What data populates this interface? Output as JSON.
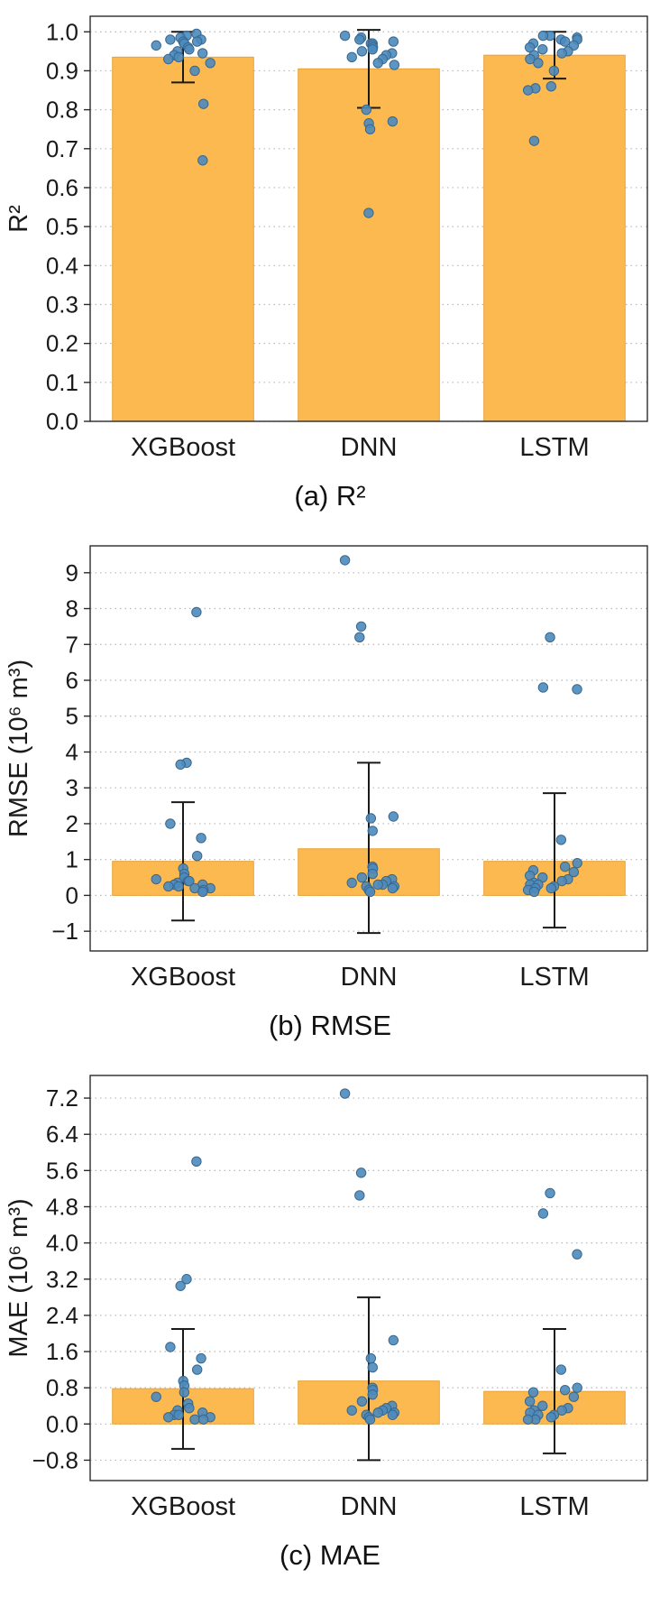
{
  "figure": {
    "background": "#ffffff",
    "bar_color": "#fcb94f",
    "bar_edge_color": "#e8a238",
    "point_color": "#4d8bbd",
    "point_edge_color": "#38678f",
    "error_color": "#1a1a1a",
    "grid_color": "#b8b8b8",
    "axis_color": "#2b2b2b",
    "tick_label_color": "#1a1a1a"
  },
  "chart_data": [
    {
      "type": "bar",
      "caption": "(a) R²",
      "ylabel": "R²",
      "categories": [
        "XGBoost",
        "DNN",
        "LSTM"
      ],
      "bar_values": [
        0.935,
        0.905,
        0.94
      ],
      "error_low": [
        0.87,
        0.805,
        0.88
      ],
      "error_high": [
        1.0,
        1.005,
        1.0
      ],
      "ylim": [
        0.0,
        1.04
      ],
      "ytick_values": [
        0.0,
        0.1,
        0.2,
        0.3,
        0.4,
        0.5,
        0.6,
        0.7,
        0.8,
        0.9,
        1.0
      ],
      "ytick_labels": [
        "0.0",
        "0.1",
        "0.2",
        "0.3",
        "0.4",
        "0.5",
        "0.6",
        "0.7",
        "0.8",
        "0.9",
        "1.0"
      ],
      "grid": true,
      "legend": null,
      "points": [
        [
          0.995,
          0.99,
          0.985,
          0.98,
          0.98,
          0.975,
          0.975,
          0.97,
          0.97,
          0.965,
          0.96,
          0.955,
          0.95,
          0.945,
          0.94,
          0.935,
          0.93,
          0.92,
          0.9,
          0.815,
          0.67
        ],
        [
          0.99,
          0.985,
          0.98,
          0.975,
          0.97,
          0.97,
          0.965,
          0.96,
          0.955,
          0.95,
          0.945,
          0.94,
          0.935,
          0.93,
          0.92,
          0.915,
          0.8,
          0.77,
          0.765,
          0.75,
          0.535
        ],
        [
          0.99,
          0.99,
          0.985,
          0.98,
          0.98,
          0.975,
          0.97,
          0.965,
          0.96,
          0.955,
          0.95,
          0.945,
          0.94,
          0.93,
          0.92,
          0.9,
          0.86,
          0.855,
          0.85,
          0.72
        ]
      ]
    },
    {
      "type": "bar",
      "caption": "(b) RMSE",
      "ylabel": "RMSE (10⁶ m³)",
      "categories": [
        "XGBoost",
        "DNN",
        "LSTM"
      ],
      "bar_values": [
        0.95,
        1.3,
        0.95
      ],
      "error_low": [
        -0.7,
        -1.05,
        -0.9
      ],
      "error_high": [
        2.6,
        3.7,
        2.85
      ],
      "ylim": [
        -1.55,
        9.75
      ],
      "ytick_values": [
        -1,
        0,
        1,
        2,
        3,
        4,
        5,
        6,
        7,
        8,
        9
      ],
      "ytick_labels": [
        "−1",
        "0",
        "1",
        "2",
        "3",
        "4",
        "5",
        "6",
        "7",
        "8",
        "9"
      ],
      "grid": true,
      "legend": null,
      "points": [
        [
          7.9,
          3.7,
          3.65,
          2.0,
          1.6,
          1.1,
          0.75,
          0.6,
          0.5,
          0.45,
          0.4,
          0.4,
          0.35,
          0.3,
          0.3,
          0.25,
          0.25,
          0.2,
          0.2,
          0.15,
          0.1
        ],
        [
          9.35,
          7.5,
          7.2,
          2.2,
          2.15,
          1.8,
          0.8,
          0.75,
          0.6,
          0.5,
          0.45,
          0.4,
          0.35,
          0.3,
          0.3,
          0.25,
          0.25,
          0.2,
          0.15,
          0.1
        ],
        [
          7.2,
          5.8,
          5.75,
          1.55,
          0.9,
          0.8,
          0.7,
          0.65,
          0.55,
          0.5,
          0.45,
          0.4,
          0.35,
          0.3,
          0.3,
          0.25,
          0.2,
          0.2,
          0.15,
          0.1
        ]
      ]
    },
    {
      "type": "bar",
      "caption": "(c) MAE",
      "ylabel": "MAE (10⁶ m³)",
      "categories": [
        "XGBoost",
        "DNN",
        "LSTM"
      ],
      "bar_values": [
        0.78,
        0.95,
        0.72
      ],
      "error_low": [
        -0.55,
        -0.8,
        -0.65
      ],
      "error_high": [
        2.1,
        2.8,
        2.1
      ],
      "ylim": [
        -1.25,
        7.7
      ],
      "ytick_values": [
        -0.8,
        0.0,
        0.8,
        1.6,
        2.4,
        3.2,
        4.0,
        4.8,
        5.6,
        6.4,
        7.2
      ],
      "ytick_labels": [
        "−0.8",
        "0.0",
        "0.8",
        "1.6",
        "2.4",
        "3.2",
        "4.0",
        "4.8",
        "5.6",
        "6.4",
        "7.2"
      ],
      "grid": true,
      "legend": null,
      "points": [
        [
          5.8,
          3.2,
          3.05,
          1.7,
          1.45,
          1.2,
          0.95,
          0.85,
          0.7,
          0.6,
          0.45,
          0.35,
          0.3,
          0.25,
          0.2,
          0.2,
          0.15,
          0.15,
          0.1,
          0.1
        ],
        [
          7.3,
          5.55,
          5.05,
          1.85,
          1.45,
          1.25,
          0.8,
          0.75,
          0.65,
          0.5,
          0.4,
          0.35,
          0.3,
          0.3,
          0.25,
          0.25,
          0.2,
          0.2,
          0.15,
          0.1
        ],
        [
          5.1,
          4.65,
          3.75,
          1.2,
          0.8,
          0.75,
          0.7,
          0.6,
          0.5,
          0.4,
          0.35,
          0.3,
          0.3,
          0.25,
          0.2,
          0.2,
          0.15,
          0.1,
          0.1
        ]
      ]
    }
  ]
}
